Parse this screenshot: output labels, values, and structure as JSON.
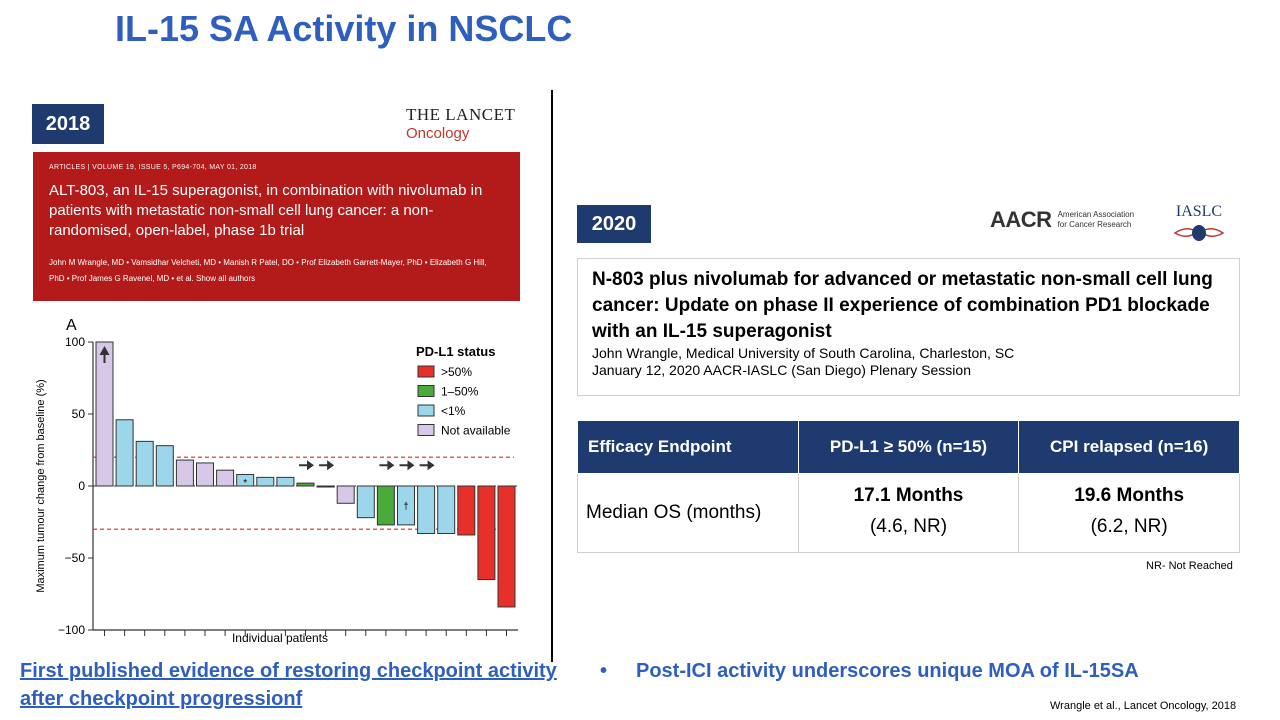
{
  "slide": {
    "title": "IL-15 SA Activity in NSCLC",
    "badge_2018": "2018",
    "badge_2020": "2020",
    "citation": "Wrangle et al., Lancet Oncology, 2018",
    "left_highlight": "First published evidence of restoring checkpoint activity after checkpoint progressionf",
    "right_bullet_marker": "•",
    "right_bullet": "Post-ICI activity underscores unique MOA of IL-15SA"
  },
  "lancet_logo": {
    "line1": "THE LANCET",
    "line2": "Oncology"
  },
  "article": {
    "meta": "ARTICLES | VOLUME 19, ISSUE 5, P694-704, MAY 01, 2018",
    "title": "ALT-803, an IL-15 superagonist, in combination with nivolumab in patients with metastatic non-small cell lung cancer: a non-randomised, open-label, phase 1b trial",
    "authors": "John M Wrangle, MD • Vamsidhar Velcheti, MD • Manish R Patel, DO • Prof Elizabeth Garrett-Mayer, PhD • Elizabeth G Hill, PhD • Prof James G Ravenel, MD • et al.   Show all authors"
  },
  "chart_data": {
    "type": "bar",
    "panel_label": "A",
    "ylabel": "Maximum tumour change from baseline (%)",
    "xlabel": "Individual patients",
    "ylim": [
      -100,
      100
    ],
    "yticks": [
      "100",
      "50",
      "0",
      "−50",
      "−100"
    ],
    "legend_title": "PD-L1 status",
    "legend": [
      {
        "label": ">50%",
        "color": "#e8302a"
      },
      {
        "label": "1–50%",
        "color": "#4aaa3c"
      },
      {
        "label": "<1%",
        "color": "#9bd6ea"
      },
      {
        "label": "Not available",
        "color": "#d6c8e6"
      }
    ],
    "reference_lines": [
      20,
      -30
    ],
    "values": [
      100,
      46,
      31,
      28,
      18,
      16,
      11,
      8,
      6,
      6,
      2,
      0,
      -12,
      -22,
      -27,
      -27,
      -33,
      -33,
      -34,
      -65,
      -84
    ],
    "status": [
      "na",
      "lt1",
      "lt1",
      "lt1",
      "na",
      "na",
      "na",
      "lt1",
      "lt1",
      "lt1",
      "mid",
      "lt1",
      "na",
      "lt1",
      "mid",
      "lt1",
      "lt1",
      "lt1",
      "gt50",
      "gt50",
      "gt50"
    ],
    "ongoing_arrow_up": [
      0
    ],
    "ongoing_arrow_right": [
      10,
      11,
      14,
      15,
      16
    ],
    "bar_marks": [
      {
        "index": 7,
        "text": "*"
      },
      {
        "index": 15,
        "text": "†"
      }
    ]
  },
  "aacr_logo": {
    "mark": "AACR",
    "sub1": "American Association",
    "sub2": "for Cancer Research"
  },
  "iaslc_logo": {
    "text": "IASLC"
  },
  "abstract_box": {
    "title": "N-803 plus nivolumab for advanced or metastatic non-small cell lung cancer: Update on phase II experience of combination PD1 blockade with an IL-15 superagonist",
    "line1": "John Wrangle, Medical University of South Carolina, Charleston, SC",
    "line2": "January 12, 2020 AACR-IASLC (San Diego) Plenary Session"
  },
  "table": {
    "headers": [
      "Efficacy Endpoint",
      "PD-L1 ≥ 50% (n=15)",
      "CPI relapsed (n=16)"
    ],
    "row_label": "Median OS (months)",
    "col1_value": "17.1 Months",
    "col1_ci": "(4.6, NR)",
    "col2_value": "19.6 Months",
    "col2_ci": "(6.2, NR)"
  },
  "nr_note": "NR- Not Reached"
}
